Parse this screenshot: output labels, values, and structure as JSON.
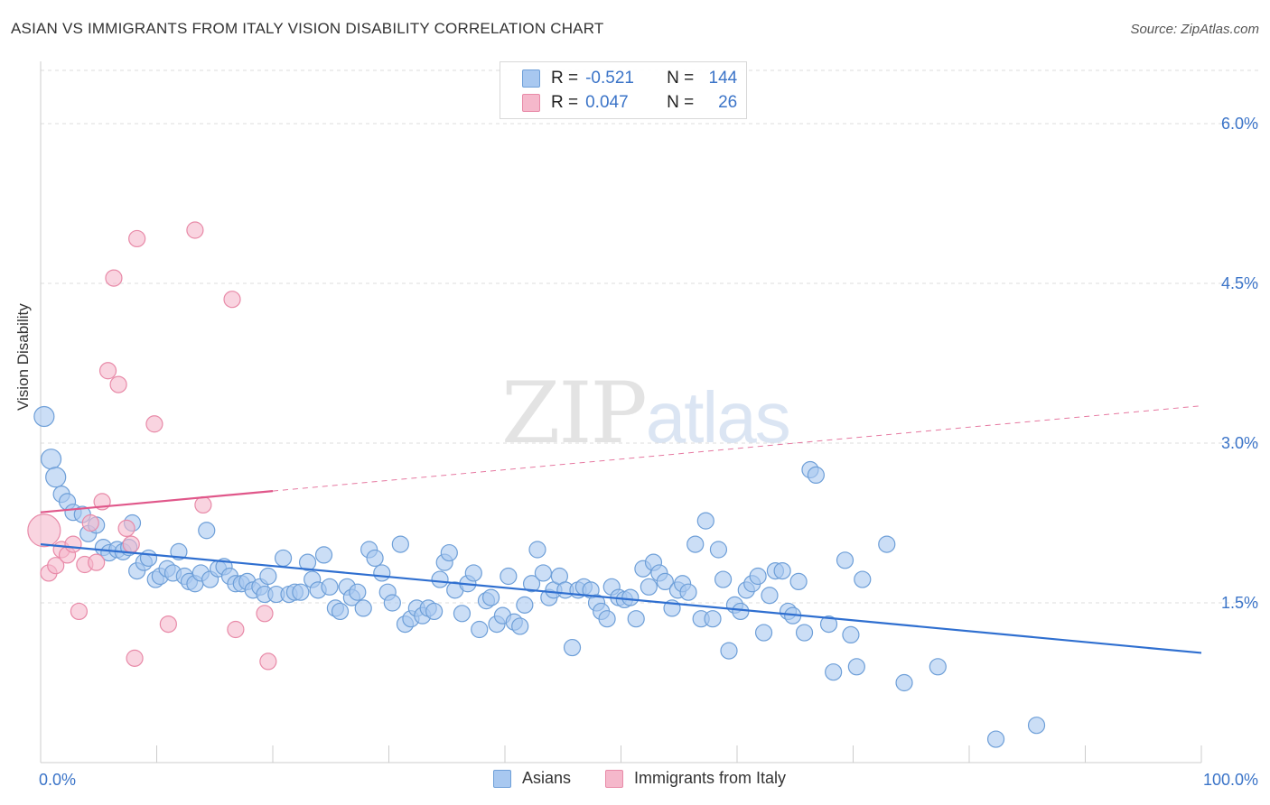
{
  "title": "ASIAN VS IMMIGRANTS FROM ITALY VISION DISABILITY CORRELATION CHART",
  "source": "Source: ZipAtlas.com",
  "watermark": {
    "zip": "ZIP",
    "atlas": "atlas"
  },
  "colors": {
    "blue_fill": "#a8c8f0",
    "blue_stroke": "#6e9fd8",
    "blue_line": "#2f6fd0",
    "pink_fill": "#f5b8cb",
    "pink_stroke": "#e88aa8",
    "pink_line": "#e0578a",
    "tick_label": "#3b74c8",
    "grid": "#dddddd"
  },
  "stats": {
    "rows": [
      {
        "r_label": "R =",
        "r_value": "-0.521",
        "n_label": "N =",
        "n_value": "144"
      },
      {
        "r_label": "R =",
        "r_value": "0.047",
        "n_label": "N =",
        "n_value": "26"
      }
    ]
  },
  "legend": {
    "asians": "Asians",
    "italy": "Immigrants from Italy"
  },
  "chart_data": {
    "type": "scatter",
    "title": "ASIAN VS IMMIGRANTS FROM ITALY VISION DISABILITY CORRELATION CHART",
    "xlabel": "",
    "ylabel": "Vision Disability",
    "xlim": [
      0,
      100
    ],
    "ylim": [
      0,
      6.5
    ],
    "x_tick_labels": {
      "min": "0.0%",
      "max": "100.0%"
    },
    "y_ticks": [
      {
        "value": 1.5,
        "label": "1.5%"
      },
      {
        "value": 3.0,
        "label": "3.0%"
      },
      {
        "value": 4.5,
        "label": "4.5%"
      },
      {
        "value": 6.0,
        "label": "6.0%"
      }
    ],
    "series": [
      {
        "name": "Asians",
        "r": -0.521,
        "n": 144,
        "trend": {
          "x0": 0,
          "y0": 2.05,
          "x1": 100,
          "y1": 1.03,
          "style": "solid"
        },
        "points": [
          [
            0.3,
            3.25
          ],
          [
            0.9,
            2.85
          ],
          [
            1.3,
            2.68
          ],
          [
            1.8,
            2.52
          ],
          [
            2.3,
            2.45
          ],
          [
            2.8,
            2.35
          ],
          [
            3.6,
            2.33
          ],
          [
            4.1,
            2.15
          ],
          [
            4.8,
            2.23
          ],
          [
            5.4,
            2.02
          ],
          [
            5.9,
            1.97
          ],
          [
            6.6,
            2.0
          ],
          [
            7.1,
            1.98
          ],
          [
            7.6,
            2.02
          ],
          [
            7.9,
            2.25
          ],
          [
            8.3,
            1.8
          ],
          [
            8.9,
            1.88
          ],
          [
            9.3,
            1.92
          ],
          [
            9.9,
            1.72
          ],
          [
            10.3,
            1.75
          ],
          [
            10.9,
            1.82
          ],
          [
            11.4,
            1.78
          ],
          [
            11.9,
            1.98
          ],
          [
            12.4,
            1.75
          ],
          [
            12.8,
            1.7
          ],
          [
            13.3,
            1.68
          ],
          [
            13.8,
            1.78
          ],
          [
            14.3,
            2.18
          ],
          [
            14.6,
            1.72
          ],
          [
            15.3,
            1.82
          ],
          [
            15.8,
            1.84
          ],
          [
            16.3,
            1.75
          ],
          [
            16.8,
            1.68
          ],
          [
            17.3,
            1.68
          ],
          [
            17.8,
            1.7
          ],
          [
            18.3,
            1.62
          ],
          [
            18.9,
            1.65
          ],
          [
            19.3,
            1.58
          ],
          [
            19.6,
            1.75
          ],
          [
            20.3,
            1.58
          ],
          [
            20.9,
            1.92
          ],
          [
            21.4,
            1.58
          ],
          [
            21.9,
            1.6
          ],
          [
            22.4,
            1.6
          ],
          [
            23.0,
            1.88
          ],
          [
            23.4,
            1.72
          ],
          [
            23.9,
            1.62
          ],
          [
            24.4,
            1.95
          ],
          [
            24.9,
            1.65
          ],
          [
            25.4,
            1.45
          ],
          [
            25.8,
            1.42
          ],
          [
            26.4,
            1.65
          ],
          [
            26.8,
            1.55
          ],
          [
            27.3,
            1.6
          ],
          [
            27.8,
            1.45
          ],
          [
            28.3,
            2.0
          ],
          [
            28.8,
            1.92
          ],
          [
            29.4,
            1.78
          ],
          [
            29.9,
            1.6
          ],
          [
            30.3,
            1.5
          ],
          [
            31.0,
            2.05
          ],
          [
            31.4,
            1.3
          ],
          [
            31.9,
            1.35
          ],
          [
            32.4,
            1.45
          ],
          [
            32.9,
            1.38
          ],
          [
            33.4,
            1.45
          ],
          [
            33.9,
            1.42
          ],
          [
            34.4,
            1.72
          ],
          [
            34.8,
            1.88
          ],
          [
            35.2,
            1.97
          ],
          [
            35.7,
            1.62
          ],
          [
            36.3,
            1.4
          ],
          [
            36.8,
            1.68
          ],
          [
            37.3,
            1.78
          ],
          [
            37.8,
            1.25
          ],
          [
            38.4,
            1.52
          ],
          [
            38.8,
            1.55
          ],
          [
            39.3,
            1.3
          ],
          [
            39.8,
            1.38
          ],
          [
            40.3,
            1.75
          ],
          [
            40.8,
            1.32
          ],
          [
            41.3,
            1.28
          ],
          [
            41.7,
            1.48
          ],
          [
            42.3,
            1.68
          ],
          [
            42.8,
            2.0
          ],
          [
            43.3,
            1.78
          ],
          [
            43.8,
            1.55
          ],
          [
            44.2,
            1.62
          ],
          [
            44.7,
            1.75
          ],
          [
            45.2,
            1.62
          ],
          [
            45.8,
            1.08
          ],
          [
            46.3,
            1.62
          ],
          [
            46.8,
            1.65
          ],
          [
            47.4,
            1.62
          ],
          [
            47.9,
            1.5
          ],
          [
            48.3,
            1.42
          ],
          [
            48.8,
            1.35
          ],
          [
            49.2,
            1.65
          ],
          [
            49.8,
            1.55
          ],
          [
            50.3,
            1.53
          ],
          [
            50.8,
            1.55
          ],
          [
            51.3,
            1.35
          ],
          [
            51.9,
            1.82
          ],
          [
            52.4,
            1.65
          ],
          [
            52.8,
            1.88
          ],
          [
            53.3,
            1.78
          ],
          [
            53.8,
            1.7
          ],
          [
            54.4,
            1.45
          ],
          [
            54.9,
            1.62
          ],
          [
            55.3,
            1.68
          ],
          [
            55.8,
            1.6
          ],
          [
            56.4,
            2.05
          ],
          [
            56.9,
            1.35
          ],
          [
            57.3,
            2.27
          ],
          [
            57.9,
            1.35
          ],
          [
            58.4,
            2.0
          ],
          [
            58.8,
            1.72
          ],
          [
            59.3,
            1.05
          ],
          [
            59.8,
            1.48
          ],
          [
            60.3,
            1.42
          ],
          [
            60.8,
            1.62
          ],
          [
            61.3,
            1.68
          ],
          [
            61.8,
            1.75
          ],
          [
            62.3,
            1.22
          ],
          [
            62.8,
            1.57
          ],
          [
            63.3,
            1.8
          ],
          [
            63.9,
            1.8
          ],
          [
            64.4,
            1.42
          ],
          [
            64.8,
            1.38
          ],
          [
            65.3,
            1.7
          ],
          [
            65.8,
            1.22
          ],
          [
            66.3,
            2.75
          ],
          [
            66.8,
            2.7
          ],
          [
            67.9,
            1.3
          ],
          [
            68.3,
            0.85
          ],
          [
            69.3,
            1.9
          ],
          [
            69.8,
            1.2
          ],
          [
            70.3,
            0.9
          ],
          [
            70.8,
            1.72
          ],
          [
            72.9,
            2.05
          ],
          [
            74.4,
            0.75
          ],
          [
            77.3,
            0.9
          ],
          [
            82.3,
            0.22
          ],
          [
            85.8,
            0.35
          ]
        ]
      },
      {
        "name": "Immigrants from Italy",
        "r": 0.047,
        "n": 26,
        "trend": {
          "x0": 0,
          "y0": 2.35,
          "x1": 100,
          "y1": 3.35,
          "solid_until": 20,
          "style": "solid-then-dashed"
        },
        "points": [
          [
            0.3,
            2.18
          ],
          [
            0.7,
            1.78
          ],
          [
            1.3,
            1.85
          ],
          [
            1.8,
            2.0
          ],
          [
            2.3,
            1.95
          ],
          [
            2.8,
            2.05
          ],
          [
            3.3,
            1.42
          ],
          [
            3.8,
            1.86
          ],
          [
            4.3,
            2.25
          ],
          [
            4.8,
            1.88
          ],
          [
            5.3,
            2.45
          ],
          [
            5.8,
            3.68
          ],
          [
            6.3,
            4.55
          ],
          [
            6.7,
            3.55
          ],
          [
            7.4,
            2.2
          ],
          [
            7.8,
            2.05
          ],
          [
            8.1,
            0.98
          ],
          [
            8.3,
            4.92
          ],
          [
            9.8,
            3.18
          ],
          [
            11.0,
            1.3
          ],
          [
            13.3,
            5.0
          ],
          [
            14.0,
            2.42
          ],
          [
            16.5,
            4.35
          ],
          [
            16.8,
            1.25
          ],
          [
            19.3,
            1.4
          ],
          [
            19.6,
            0.95
          ]
        ]
      }
    ]
  }
}
